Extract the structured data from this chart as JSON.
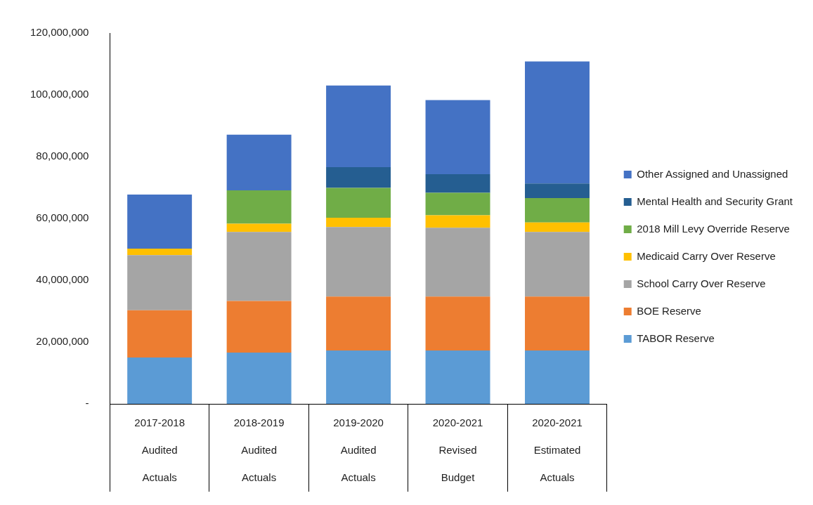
{
  "chart_data": {
    "type": "bar",
    "stacked": true,
    "legend": "right",
    "grid": false,
    "categories": [
      "2017-2018 Audited Actuals",
      "2018-2019 Audited Actuals",
      "2019-2020 Audited Actuals",
      "2020-2021 Revised Budget",
      "2020-2021 Estimated Actuals"
    ],
    "ylim": [
      0,
      120000000
    ],
    "yticks": [
      {
        "value": 0,
        "label": "-"
      },
      {
        "value": 20000000,
        "label": "20,000,000"
      },
      {
        "value": 40000000,
        "label": "40,000,000"
      },
      {
        "value": 60000000,
        "label": "60,000,000"
      },
      {
        "value": 80000000,
        "label": "80,000,000"
      },
      {
        "value": 100000000,
        "label": "100,000,000"
      },
      {
        "value": 120000000,
        "label": "120,000,000"
      }
    ],
    "series": [
      {
        "name": "TABOR Reserve",
        "color": "#5b9bd5",
        "values": [
          15000000,
          16600000,
          17300000,
          17300000,
          17300000
        ]
      },
      {
        "name": "BOE Reserve",
        "color": "#ed7d31",
        "values": [
          15300000,
          16700000,
          17400000,
          17400000,
          17400000
        ]
      },
      {
        "name": "School Carry Over Reserve",
        "color": "#a5a5a5",
        "values": [
          17800000,
          22300000,
          22500000,
          22300000,
          20900000
        ]
      },
      {
        "name": "Medicaid Carry Over Reserve",
        "color": "#ffc000",
        "values": [
          2100000,
          2700000,
          3000000,
          4000000,
          3100000
        ]
      },
      {
        "name": "2018 Mill Levy Override Reserve",
        "color": "#70ad47",
        "values": [
          0,
          10800000,
          9700000,
          7300000,
          7900000
        ]
      },
      {
        "name": "Mental Health and Security Grant",
        "color": "#255e91",
        "values": [
          0,
          0,
          6700000,
          6000000,
          4700000
        ]
      },
      {
        "name": "Other Assigned and Unassigned",
        "color": "#4472c4",
        "values": [
          17500000,
          18000000,
          26400000,
          24000000,
          39500000
        ]
      }
    ]
  }
}
